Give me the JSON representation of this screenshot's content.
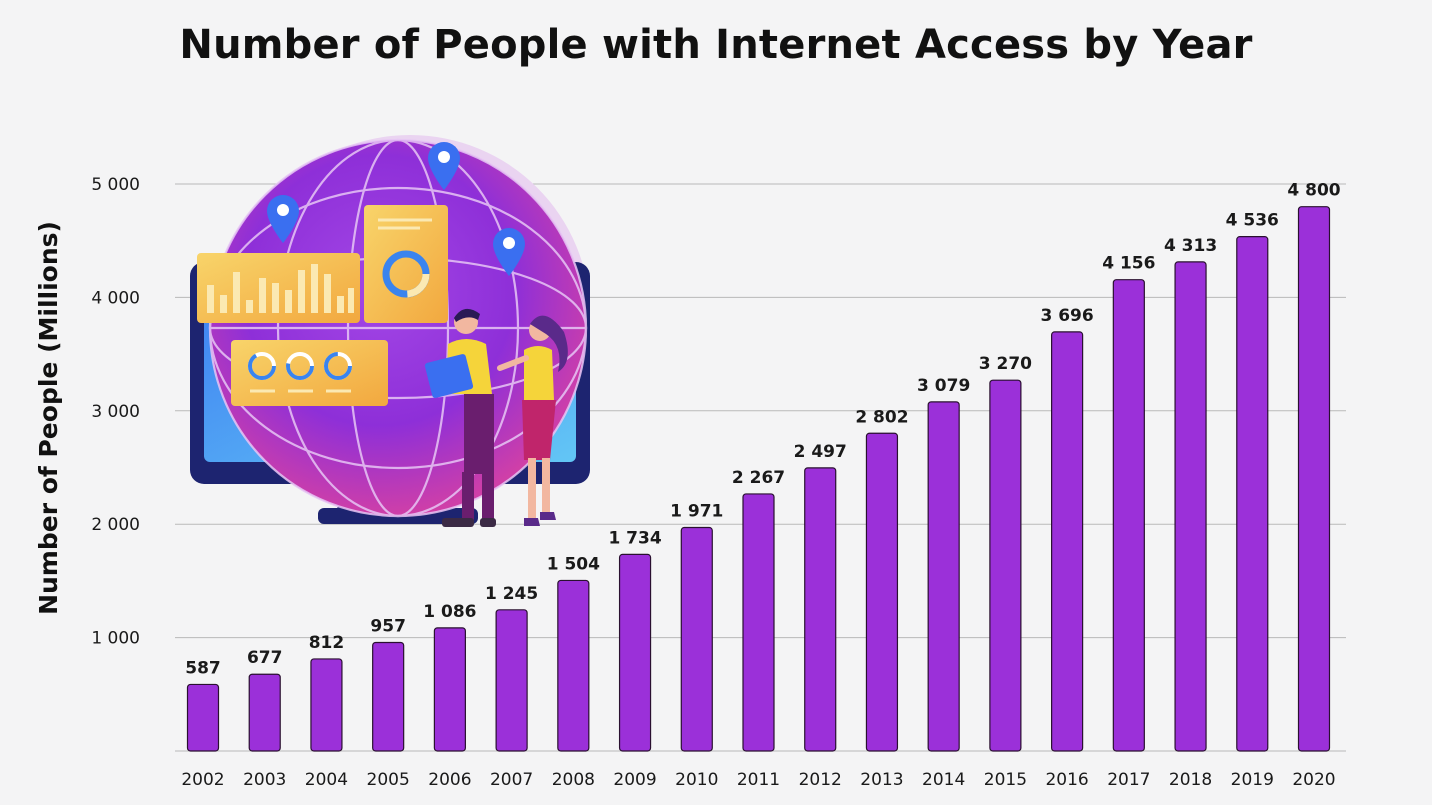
{
  "chart_data": {
    "type": "bar",
    "title": "Number of People with Internet Access by Year",
    "xlabel": "",
    "ylabel": "Number of People (Millions)",
    "categories": [
      "2002",
      "2003",
      "2004",
      "2005",
      "2006",
      "2007",
      "2008",
      "2009",
      "2010",
      "2011",
      "2012",
      "2013",
      "2014",
      "2015",
      "2016",
      "2017",
      "2018",
      "2019",
      "2020"
    ],
    "values": [
      587,
      677,
      812,
      957,
      1086,
      1245,
      1504,
      1734,
      1971,
      2267,
      2497,
      2802,
      3079,
      3270,
      3696,
      4156,
      4313,
      4536,
      4800
    ],
    "value_labels": [
      "587",
      "677",
      "812",
      "957",
      "1 086",
      "1 245",
      "1 504",
      "1 734",
      "1 971",
      "2 267",
      "2 497",
      "2 802",
      "3 079",
      "3 270",
      "3 696",
      "4 156",
      "4 313",
      "4 536",
      "4 800"
    ],
    "yticks": [
      1000,
      2000,
      3000,
      4000,
      5000
    ],
    "ytick_labels": [
      "1 000",
      "2 000",
      "3 000",
      "4 000",
      "5 000"
    ],
    "ylim": [
      0,
      5000
    ],
    "grid": true,
    "legend": "none",
    "bar_color": "#9b30d9",
    "bar_outline_color": "#2a1030",
    "gridline_color": "#b9b9b9",
    "illustration": "people-with-globe-and-monitor-illustration"
  }
}
